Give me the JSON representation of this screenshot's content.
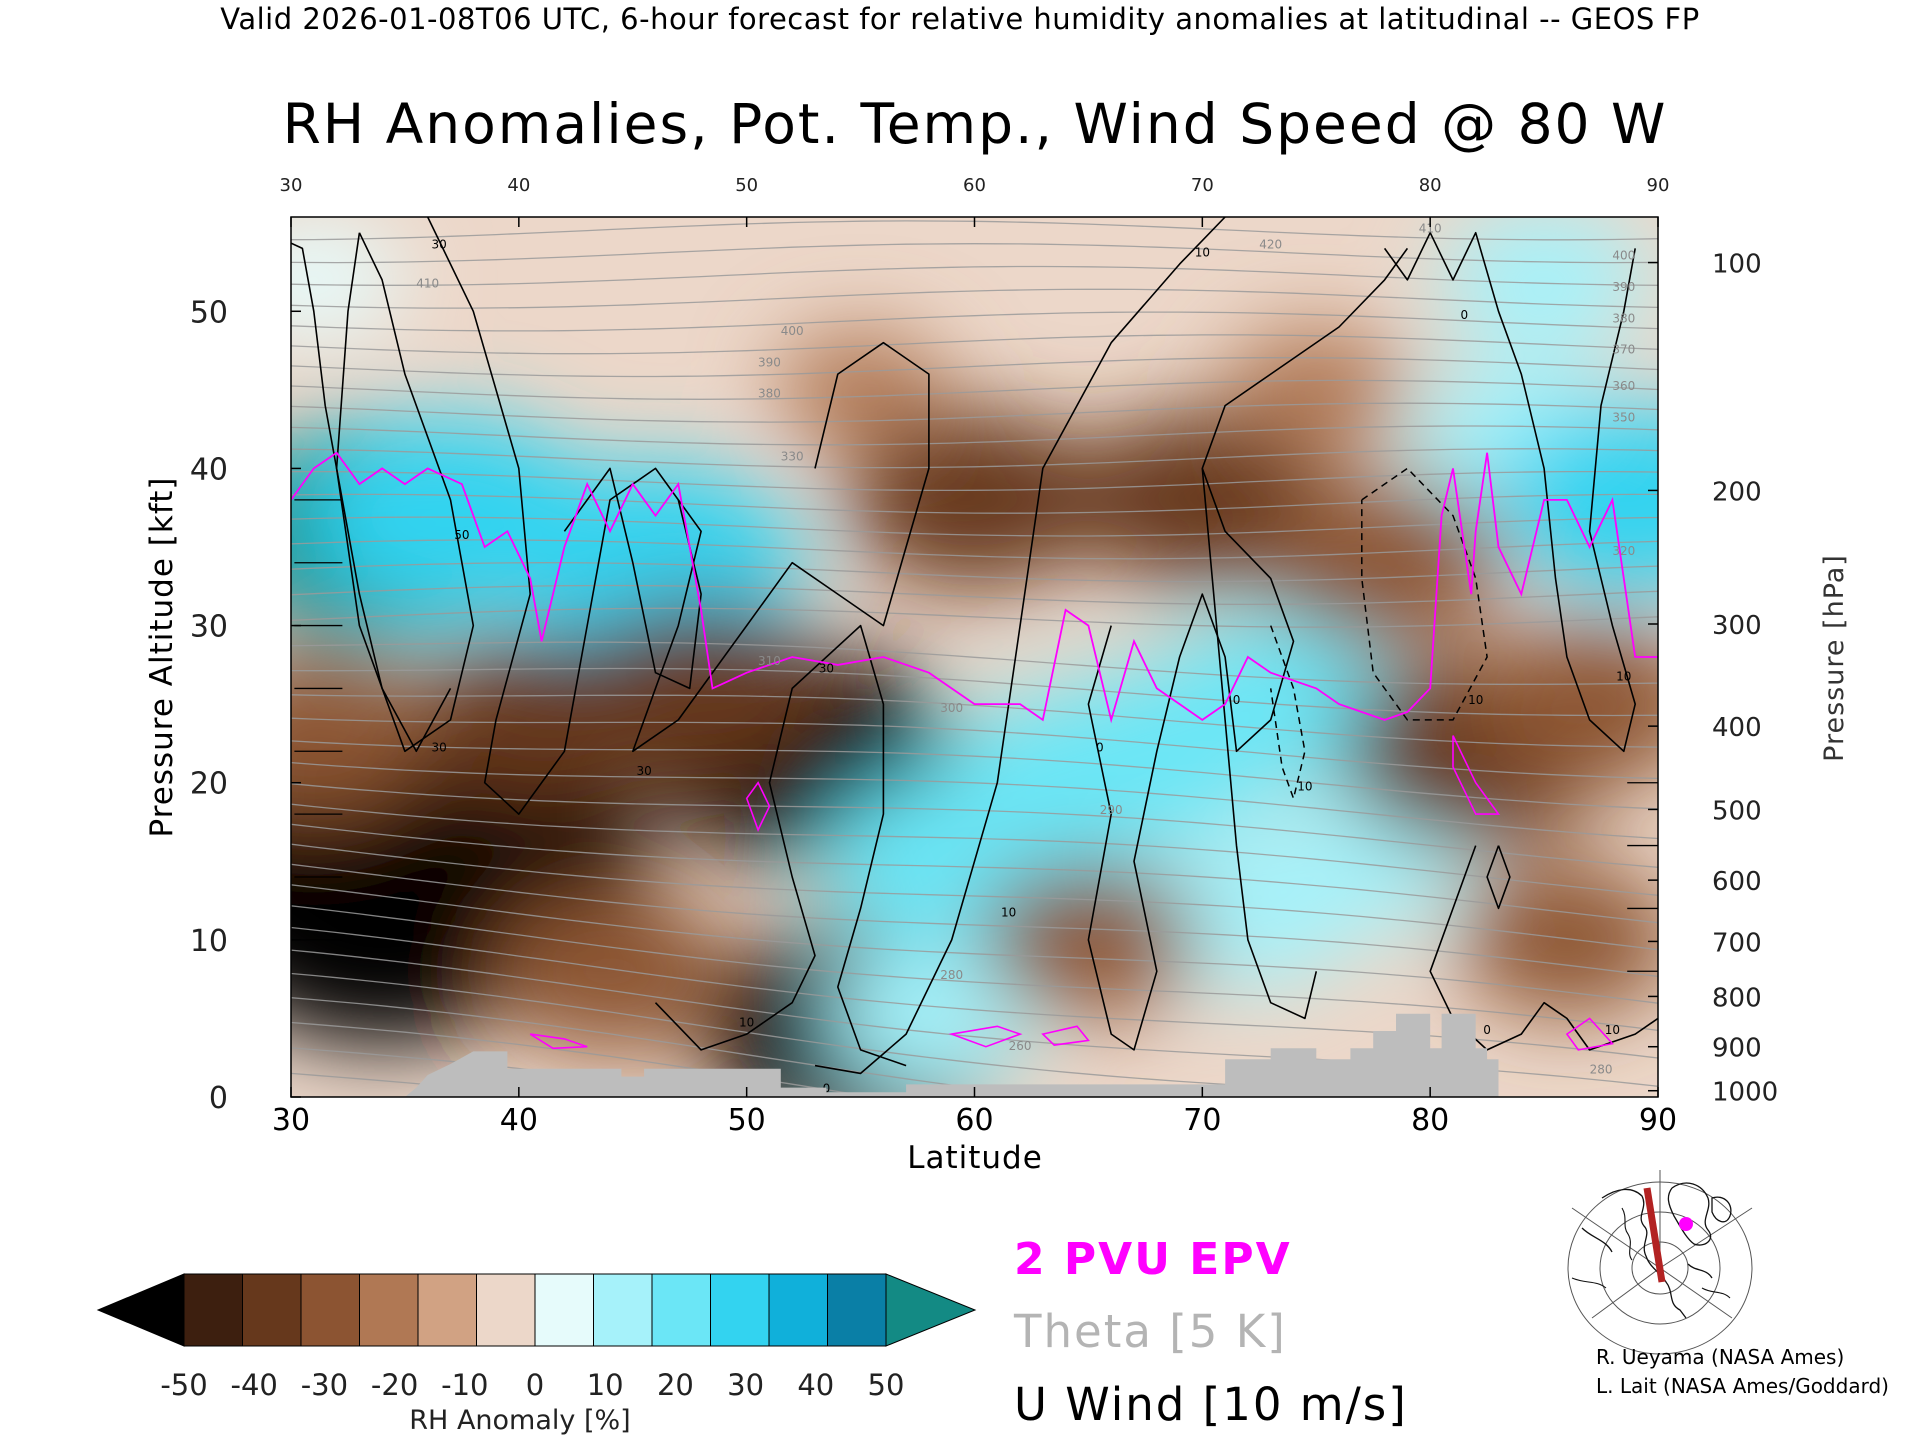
{
  "header": "Valid 2026-01-08T06 UTC, 6-hour forecast for relative humidity anomalies at latitudinal -- GEOS FP",
  "credits": [
    "R. Ueyama (NASA Ames)",
    "L. Lait (NASA Ames/Goddard)"
  ],
  "chart_data": {
    "type": "heatmap",
    "title": "RH Anomalies, Pot. Temp., Wind Speed @ 80 W",
    "xlabel": "Latitude",
    "ylabel": "Pressure Altitude [kft]",
    "ylabel_right": "Pressure [hPa]",
    "xlim": [
      30,
      90
    ],
    "ylim": [
      0,
      56
    ],
    "x_ticks": [
      30,
      40,
      50,
      60,
      70,
      80,
      90
    ],
    "y_ticks": [
      0,
      10,
      20,
      30,
      40,
      50
    ],
    "pressure_ticks": [
      {
        "label": "100",
        "kft": 53.1
      },
      {
        "label": "200",
        "kft": 38.6
      },
      {
        "label": "300",
        "kft": 30.1
      },
      {
        "label": "400",
        "kft": 23.6
      },
      {
        "label": "500",
        "kft": 18.3
      },
      {
        "label": "600",
        "kft": 13.8
      },
      {
        "label": "700",
        "kft": 9.9
      },
      {
        "label": "800",
        "kft": 6.4
      },
      {
        "label": "900",
        "kft": 3.2
      },
      {
        "label": "1000",
        "kft": 0.4
      }
    ],
    "colorbar": {
      "label": "RH Anomaly [%]",
      "ticks": [
        -50,
        -40,
        -30,
        -20,
        -10,
        0,
        10,
        20,
        30,
        40,
        50
      ],
      "colors": [
        "#000000",
        "#3d1f0f",
        "#66381c",
        "#8c5432",
        "#b07854",
        "#d1a283",
        "#ecd7c9",
        "#e6fbfb",
        "#a6f2fa",
        "#6be6f6",
        "#33d3f0",
        "#10b0da",
        "#0a7fa6",
        "#138a84"
      ]
    },
    "legend": [
      {
        "label": "2 PVU EPV",
        "color": "#ff00ff"
      },
      {
        "label": "Theta [5 K]",
        "color": "#b4b4b4"
      },
      {
        "label": "U Wind [10 m/s]",
        "color": "#000000"
      }
    ],
    "rh_field": {
      "units": "%",
      "blobs": [
        {
          "lat": 32,
          "kft": 13,
          "anom": -60
        },
        {
          "lat": 34,
          "kft": 11,
          "anom": -60
        },
        {
          "lat": 37,
          "kft": 14,
          "anom": -58
        },
        {
          "lat": 39,
          "kft": 16,
          "anom": -50
        },
        {
          "lat": 34,
          "kft": 36,
          "anom": 55
        },
        {
          "lat": 37,
          "kft": 37,
          "anom": 45
        },
        {
          "lat": 46,
          "kft": 34,
          "anom": 45
        },
        {
          "lat": 52,
          "kft": 22,
          "anom": -50
        },
        {
          "lat": 55,
          "kft": 4,
          "anom": -50
        },
        {
          "lat": 44,
          "kft": 8,
          "anom": -30
        },
        {
          "lat": 48,
          "kft": 26,
          "anom": -35
        },
        {
          "lat": 59,
          "kft": 15,
          "anom": 35
        },
        {
          "lat": 64,
          "kft": 20,
          "anom": 35
        },
        {
          "lat": 68,
          "kft": 22,
          "anom": 32
        },
        {
          "lat": 73,
          "kft": 25,
          "anom": 32
        },
        {
          "lat": 72,
          "kft": 12,
          "anom": 28
        },
        {
          "lat": 58,
          "kft": 5,
          "anom": 22
        },
        {
          "lat": 77,
          "kft": 15,
          "anom": 22
        },
        {
          "lat": 65,
          "kft": 10,
          "anom": -25
        },
        {
          "lat": 82,
          "kft": 22,
          "anom": -40
        },
        {
          "lat": 87,
          "kft": 25,
          "anom": -30
        },
        {
          "lat": 86,
          "kft": 10,
          "anom": -25
        },
        {
          "lat": 31,
          "kft": 23,
          "anom": -30
        },
        {
          "lat": 41,
          "kft": 24,
          "anom": -32
        },
        {
          "lat": 84,
          "kft": 42,
          "anom": 25
        },
        {
          "lat": 89,
          "kft": 38,
          "anom": 40
        },
        {
          "lat": 60,
          "kft": 38,
          "anom": -35
        },
        {
          "lat": 70,
          "kft": 38,
          "anom": -35
        },
        {
          "lat": 78,
          "kft": 34,
          "anom": -30
        },
        {
          "lat": 55,
          "kft": 45,
          "anom": -12
        },
        {
          "lat": 75,
          "kft": 45,
          "anom": -15
        },
        {
          "lat": 85,
          "kft": 52,
          "anom": 22
        },
        {
          "lat": 31,
          "kft": 52,
          "anom": 15
        }
      ]
    },
    "theta_labels": [
      {
        "label": "260",
        "lat": 62,
        "kft": 3
      },
      {
        "label": "280",
        "lat": 59,
        "kft": 7.5
      },
      {
        "label": "290",
        "lat": 66,
        "kft": 18
      },
      {
        "label": "300",
        "lat": 59,
        "kft": 24.5
      },
      {
        "label": "310",
        "lat": 51,
        "kft": 27.5
      },
      {
        "label": "330",
        "lat": 52,
        "kft": 40.5
      },
      {
        "label": "380",
        "lat": 51,
        "kft": 44.5
      },
      {
        "label": "390",
        "lat": 51,
        "kft": 46.5
      },
      {
        "label": "400",
        "lat": 52,
        "kft": 48.5
      },
      {
        "label": "410",
        "lat": 36,
        "kft": 51.5
      },
      {
        "label": "420",
        "lat": 73,
        "kft": 54
      },
      {
        "label": "410",
        "lat": 80,
        "kft": 55
      },
      {
        "label": "400",
        "lat": 88.5,
        "kft": 53.3
      },
      {
        "label": "390",
        "lat": 88.5,
        "kft": 51.3
      },
      {
        "label": "380",
        "lat": 88.5,
        "kft": 49.3
      },
      {
        "label": "370",
        "lat": 88.5,
        "kft": 47.3
      },
      {
        "label": "360",
        "lat": 88.5,
        "kft": 45
      },
      {
        "label": "350",
        "lat": 88.5,
        "kft": 43
      },
      {
        "label": "320",
        "lat": 88.5,
        "kft": 34.5
      },
      {
        "label": "280",
        "lat": 87.5,
        "kft": 1.5
      }
    ],
    "wind_labels": [
      {
        "label": "30",
        "lat": 36.5,
        "kft": 54
      },
      {
        "label": "50",
        "lat": 37.5,
        "kft": 35.5
      },
      {
        "label": "30",
        "lat": 36.5,
        "kft": 22
      },
      {
        "label": "30",
        "lat": 45.5,
        "kft": 20.5
      },
      {
        "label": "30",
        "lat": 53.5,
        "kft": 27
      },
      {
        "label": "10",
        "lat": 50,
        "kft": 4.5
      },
      {
        "label": "10",
        "lat": 61.5,
        "kft": 11.5
      },
      {
        "label": "0",
        "lat": 65.5,
        "kft": 22
      },
      {
        "label": "10",
        "lat": 70,
        "kft": 53.5
      },
      {
        "label": "0",
        "lat": 71.5,
        "kft": 25
      },
      {
        "label": "10",
        "lat": 74.5,
        "kft": 19.5
      },
      {
        "label": "0",
        "lat": 81.5,
        "kft": 49.5
      },
      {
        "label": "10",
        "lat": 82,
        "kft": 25
      },
      {
        "label": "0",
        "lat": 82.5,
        "kft": 4
      },
      {
        "label": "10",
        "lat": 88.5,
        "kft": 26.5
      },
      {
        "label": "10",
        "lat": 88,
        "kft": 4
      },
      {
        "label": "0",
        "lat": 53.5,
        "kft": 0.3
      }
    ],
    "topography": [
      [
        30,
        0
      ],
      [
        35,
        0
      ],
      [
        35.5,
        0.6
      ],
      [
        36,
        1.4
      ],
      [
        37,
        2.1
      ],
      [
        38,
        2.9
      ],
      [
        39.5,
        2.9
      ],
      [
        39.5,
        1.8
      ],
      [
        44.5,
        1.8
      ],
      [
        44.5,
        1.3
      ],
      [
        45.5,
        1.3
      ],
      [
        45.5,
        1.8
      ],
      [
        47,
        1.8
      ],
      [
        47,
        1.8
      ],
      [
        51.5,
        1.8
      ],
      [
        51.5,
        0.6
      ],
      [
        53.5,
        0.6
      ],
      [
        53.5,
        0.3
      ],
      [
        57,
        0.3
      ],
      [
        57,
        0.8
      ],
      [
        71,
        0.8
      ],
      [
        71,
        2.4
      ],
      [
        73,
        2.4
      ],
      [
        73,
        3.1
      ],
      [
        75,
        3.1
      ],
      [
        75,
        2.4
      ],
      [
        76.5,
        2.4
      ],
      [
        76.5,
        3.1
      ],
      [
        77.5,
        3.1
      ],
      [
        77.5,
        4.2
      ],
      [
        78.5,
        4.2
      ],
      [
        78.5,
        5.3
      ],
      [
        80,
        5.3
      ],
      [
        80,
        3.1
      ],
      [
        80.5,
        3.1
      ],
      [
        80.5,
        5.3
      ],
      [
        82,
        5.3
      ],
      [
        82,
        3.1
      ],
      [
        82.5,
        3.1
      ],
      [
        82.5,
        2.4
      ],
      [
        83,
        2.4
      ],
      [
        83,
        0
      ]
    ]
  }
}
